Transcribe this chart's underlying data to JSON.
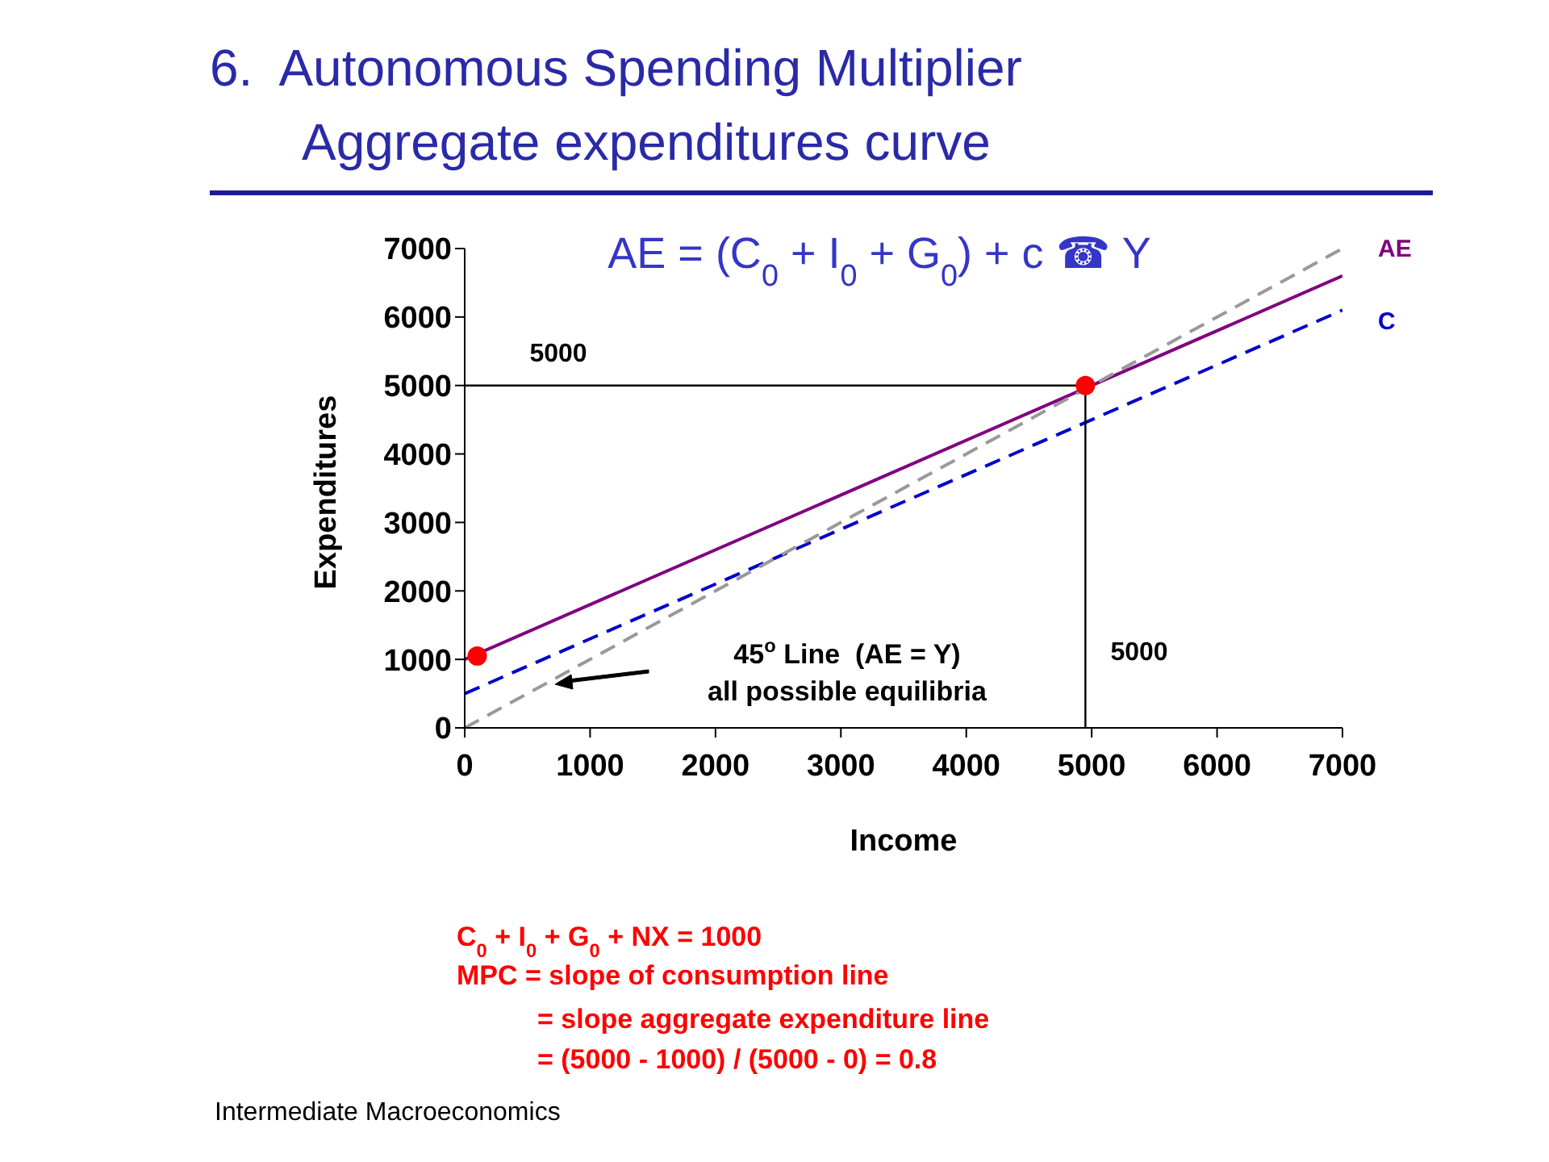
{
  "chart_data": {
    "type": "line",
    "title": "6.  Autonomous Spending Multiplier",
    "subtitle": "Aggregate expenditures curve",
    "xlabel": "Income",
    "ylabel": "Expenditures",
    "xlim": [
      0,
      7000
    ],
    "ylim": [
      0,
      7000
    ],
    "xticks": [
      0,
      1000,
      2000,
      3000,
      4000,
      5000,
      6000,
      7000
    ],
    "yticks": [
      0,
      1000,
      2000,
      3000,
      4000,
      5000,
      6000,
      7000
    ],
    "series": [
      {
        "name": "AE",
        "color": "#800080",
        "x": [
          0,
          7000
        ],
        "values": [
          1000,
          6600
        ],
        "line_style": "solid"
      },
      {
        "name": "C",
        "color": "#0000cc",
        "x": [
          0,
          7000
        ],
        "values": [
          500,
          6100
        ],
        "line_style": "dashed"
      },
      {
        "color": "#999999",
        "x": [
          0,
          7000
        ],
        "values": [
          0,
          7000
        ],
        "line_style": "dashed"
      },
      {
        "color": "#000000",
        "x": [
          0,
          4950
        ],
        "values": [
          5000,
          5000
        ],
        "line_style": "solid"
      },
      {
        "color": "#000000",
        "x": [
          4950,
          4950
        ],
        "values": [
          5000,
          0
        ],
        "line_style": "solid"
      },
      {
        "type": "scatter",
        "color": "#ff0000",
        "x": [
          100,
          4950
        ],
        "values": [
          1050,
          5000
        ],
        "marker": "circle"
      }
    ],
    "annotations": [
      "AE = (C$_{0}$ + I$_{0}$ + G$_{0}$) + c ☎ Y",
      "5000",
      "5000",
      "45$^{o}$ Line  (AE = Y)",
      "all possible equilibria",
      "C$_{0}$ + I$_{0}$ + G$_{0}$ + NX = 1000",
      "MPC = slope of consumption line",
      "= slope aggregate expenditure line",
      "= (5000 - 1000) / (5000 - 0) = 0.8",
      "Intermediate Macroeconomics"
    ]
  }
}
